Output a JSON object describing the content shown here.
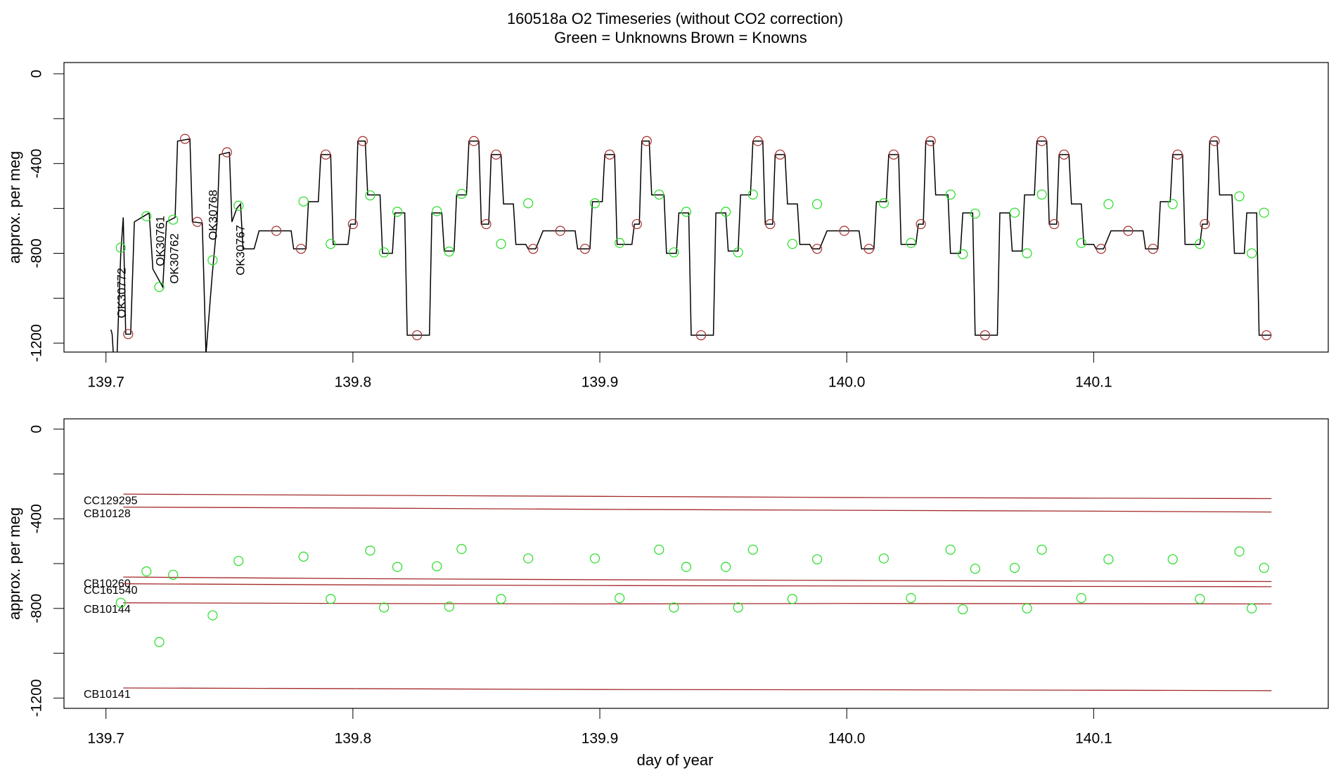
{
  "chart_data": [
    {
      "type": "line",
      "title": "160518a   O2 Timeseries (without CO2 correction)",
      "legend": [
        {
          "text": "Green = Unknowns",
          "color": "#22dd22"
        },
        {
          "text": "Brown = Knowns",
          "color": "#a52a2a"
        }
      ],
      "y_label": "approx. per meg",
      "xlim": [
        139.683,
        140.195
      ],
      "ylim": [
        -1240,
        50
      ],
      "xticks": [
        139.7,
        139.8,
        139.9,
        {
          "value": 140,
          "label": "140.0"
        },
        140.1
      ],
      "yticks": [
        0,
        -400,
        -800,
        -1200
      ],
      "yminor_ticks": [
        -200,
        -600,
        -1000
      ],
      "annotations": [
        "OK30772",
        "OK30761",
        "OK30762",
        "OK30768",
        "OK30767"
      ],
      "line": {
        "color": "#000000",
        "x": [
          139.702,
          139.7025,
          139.703,
          139.7045,
          139.706,
          139.707,
          139.708,
          139.71,
          139.7115,
          139.716,
          139.7175,
          139.719,
          139.722,
          139.723,
          139.7245,
          139.728,
          139.729,
          139.734,
          139.735,
          139.739,
          139.7405,
          139.743,
          139.745,
          139.746,
          139.75,
          139.751,
          139.753,
          139.7545,
          139.7555,
          139.76,
          139.762,
          139.775,
          139.776,
          139.781,
          139.782,
          139.786,
          139.787,
          139.791,
          139.792,
          139.798,
          139.799,
          139.801,
          139.802,
          139.805,
          139.806,
          139.811,
          139.812,
          139.816,
          139.817,
          139.821,
          139.822,
          139.831,
          139.832,
          139.836,
          139.837,
          139.841,
          139.842,
          139.846,
          139.847,
          139.851,
          139.852,
          139.855,
          139.856,
          139.86,
          139.861,
          139.865,
          139.866,
          139.87,
          139.871,
          139.874,
          139.877,
          139.89,
          139.891,
          139.896,
          139.897,
          139.901,
          139.902,
          139.906,
          139.907,
          139.913,
          139.914,
          139.916,
          139.917,
          139.92,
          139.921,
          139.926,
          139.927,
          139.931,
          139.932,
          139.936,
          139.937,
          139.946,
          139.947,
          139.951,
          139.952,
          139.956,
          139.957,
          139.961,
          139.962,
          139.966,
          139.967,
          139.97,
          139.971,
          139.975,
          139.976,
          139.98,
          139.981,
          139.985,
          139.986,
          139.989,
          139.992,
          140.005,
          140.006,
          140.011,
          140.012,
          140.016,
          140.017,
          140.021,
          140.022,
          140.028,
          140.029,
          140.031,
          140.032,
          140.035,
          140.036,
          140.041,
          140.042,
          140.046,
          140.047,
          140.051,
          140.052,
          140.061,
          140.062,
          140.066,
          140.067,
          140.071,
          140.072,
          140.076,
          140.077,
          140.081,
          140.082,
          140.085,
          140.086,
          140.09,
          140.091,
          140.095,
          140.096,
          140.1,
          140.101,
          140.104,
          140.107,
          140.12,
          140.121,
          140.126,
          140.127,
          140.131,
          140.132,
          140.136,
          140.137,
          140.143,
          140.144,
          140.146,
          140.147,
          140.15,
          140.151,
          140.156,
          140.157,
          140.161,
          140.162,
          140.166,
          140.167,
          140.172
        ],
        "y": [
          -1140,
          -1160,
          -1250,
          -1250,
          -800,
          -640,
          -1160,
          -1160,
          -660,
          -630,
          -620,
          -870,
          -930,
          -950,
          -660,
          -640,
          -300,
          -290,
          -660,
          -665,
          -1250,
          -900,
          -660,
          -360,
          -350,
          -660,
          -600,
          -580,
          -780,
          -780,
          -700,
          -700,
          -780,
          -780,
          -570,
          -570,
          -360,
          -360,
          -760,
          -760,
          -670,
          -670,
          -300,
          -300,
          -540,
          -540,
          -800,
          -800,
          -620,
          -620,
          -1165,
          -1165,
          -620,
          -620,
          -790,
          -790,
          -540,
          -540,
          -300,
          -300,
          -670,
          -670,
          -360,
          -360,
          -580,
          -580,
          -760,
          -760,
          -780,
          -780,
          -700,
          -700,
          -780,
          -780,
          -570,
          -570,
          -360,
          -360,
          -760,
          -760,
          -670,
          -670,
          -300,
          -300,
          -540,
          -540,
          -800,
          -800,
          -620,
          -620,
          -1165,
          -1165,
          -620,
          -620,
          -790,
          -790,
          -540,
          -540,
          -300,
          -300,
          -670,
          -670,
          -360,
          -360,
          -580,
          -580,
          -760,
          -760,
          -780,
          -780,
          -700,
          -700,
          -780,
          -780,
          -570,
          -570,
          -360,
          -360,
          -760,
          -760,
          -670,
          -670,
          -300,
          -300,
          -540,
          -540,
          -800,
          -800,
          -620,
          -620,
          -1165,
          -1165,
          -620,
          -620,
          -790,
          -790,
          -540,
          -540,
          -300,
          -300,
          -670,
          -670,
          -360,
          -360,
          -580,
          -580,
          -760,
          -760,
          -780,
          -780,
          -700,
          -700,
          -780,
          -780,
          -570,
          -570,
          -360,
          -360,
          -760,
          -760,
          -670,
          -670,
          -300,
          -300,
          -540,
          -540,
          -800,
          -800,
          -620,
          -620,
          -1165,
          -1165
        ]
      },
      "points": [
        {
          "color": "#22dd22",
          "x": [
            139.706,
            139.7164,
            139.7216,
            139.7272,
            139.7432,
            139.7537,
            139.78,
            139.791,
            139.807,
            139.8126,
            139.818,
            139.834,
            139.839,
            139.844,
            139.86,
            139.871,
            139.898,
            139.908,
            139.924,
            139.93,
            139.935,
            139.951,
            139.956,
            139.962,
            139.978,
            139.988,
            140.015,
            140.026,
            140.042,
            140.047,
            140.052,
            140.068,
            140.073,
            140.079,
            140.095,
            140.106,
            140.132,
            140.143,
            140.159,
            140.164,
            140.169
          ],
          "y": [
            -775,
            -635,
            -950,
            -650,
            -831,
            -588,
            -569,
            -758,
            -542,
            -796,
            -615,
            -612,
            -792,
            -535,
            -758,
            -577,
            -577,
            -754,
            -538,
            -796,
            -615,
            -615,
            -796,
            -538,
            -758,
            -581,
            -577,
            -754,
            -538,
            -804,
            -623,
            -619,
            -800,
            -538,
            -754,
            -581,
            -581,
            -758,
            -546,
            -800,
            -619
          ]
        },
        {
          "color": "#a52a2a",
          "x": [
            139.709,
            139.732,
            139.737,
            139.749,
            139.769,
            139.779,
            139.789,
            139.8,
            139.804,
            139.826,
            139.849,
            139.854,
            139.858,
            139.873,
            139.884,
            139.894,
            139.904,
            139.915,
            139.919,
            139.941,
            139.964,
            139.969,
            139.973,
            139.988,
            139.999,
            140.009,
            140.019,
            140.03,
            140.034,
            140.056,
            140.079,
            140.084,
            140.088,
            140.103,
            140.114,
            140.124,
            140.134,
            140.145,
            140.149,
            140.17
          ],
          "y": [
            -1160,
            -290,
            -660,
            -350,
            -700,
            -780,
            -360,
            -670,
            -300,
            -1165,
            -300,
            -670,
            -360,
            -780,
            -700,
            -780,
            -360,
            -670,
            -300,
            -1165,
            -300,
            -670,
            -360,
            -780,
            -700,
            -780,
            -360,
            -670,
            -300,
            -1165,
            -300,
            -670,
            -360,
            -780,
            -700,
            -780,
            -360,
            -670,
            -300,
            -1165
          ]
        }
      ]
    },
    {
      "type": "scatter",
      "y_label": "approx. per meg",
      "x_label": "day of year",
      "xlim": [
        139.683,
        140.195
      ],
      "ylim": [
        -1246,
        46
      ],
      "xticks": [
        139.7,
        139.8,
        139.9,
        {
          "value": 140,
          "label": "140.0"
        },
        140.1
      ],
      "yticks": [
        0,
        -400,
        -800,
        -1200
      ],
      "yminor_ticks": [
        -200,
        -600,
        -1000
      ],
      "points": {
        "color": "#22dd22",
        "x": [
          139.706,
          139.7164,
          139.7216,
          139.7272,
          139.7432,
          139.7537,
          139.78,
          139.791,
          139.807,
          139.8126,
          139.818,
          139.834,
          139.839,
          139.844,
          139.86,
          139.871,
          139.898,
          139.908,
          139.924,
          139.93,
          139.935,
          139.951,
          139.956,
          139.962,
          139.978,
          139.988,
          140.015,
          140.026,
          140.042,
          140.047,
          140.052,
          140.068,
          140.073,
          140.079,
          140.095,
          140.106,
          140.132,
          140.143,
          140.159,
          140.164,
          140.169
        ],
        "y": [
          -775,
          -635,
          -950,
          -650,
          -831,
          -588,
          -569,
          -758,
          -542,
          -796,
          -615,
          -612,
          -792,
          -535,
          -758,
          -577,
          -577,
          -754,
          -538,
          -796,
          -615,
          -615,
          -796,
          -538,
          -758,
          -581,
          -577,
          -754,
          -538,
          -804,
          -623,
          -619,
          -800,
          -538,
          -754,
          -581,
          -581,
          -758,
          -546,
          -800,
          -619
        ]
      },
      "series": [
        {
          "name": "CC129295",
          "color": "#a52a2a",
          "x": [
            139.707,
            139.8,
            139.9,
            140.0,
            140.1,
            140.172
          ],
          "values": [
            -290,
            -295,
            -300,
            -305,
            -308,
            -310
          ]
        },
        {
          "name": "CB10128",
          "color": "#a52a2a",
          "x": [
            139.707,
            139.8,
            139.9,
            140.0,
            140.1,
            140.172
          ],
          "values": [
            -348,
            -352,
            -358,
            -362,
            -366,
            -370
          ]
        },
        {
          "name": "CB10260",
          "color": "#a52a2a",
          "x": [
            139.707,
            139.8,
            139.9,
            140.0,
            140.1,
            140.172
          ],
          "values": [
            -660,
            -667,
            -672,
            -675,
            -678,
            -680
          ]
        },
        {
          "name": "CC161540",
          "color": "#a52a2a",
          "x": [
            139.707,
            139.8,
            139.9,
            140.0,
            140.1,
            140.172
          ],
          "values": [
            -690,
            -695,
            -698,
            -700,
            -702,
            -703
          ]
        },
        {
          "name": "CB10144",
          "color": "#a52a2a",
          "x": [
            139.707,
            139.8,
            139.9,
            140.0,
            140.1,
            140.172
          ],
          "values": [
            -775,
            -778,
            -780,
            -778,
            -779,
            -780
          ]
        },
        {
          "name": "CB10141",
          "color": "#a52a2a",
          "x": [
            139.707,
            139.8,
            139.9,
            140.0,
            140.1,
            140.172
          ],
          "values": [
            -1155,
            -1158,
            -1162,
            -1163,
            -1165,
            -1167
          ]
        }
      ]
    }
  ]
}
